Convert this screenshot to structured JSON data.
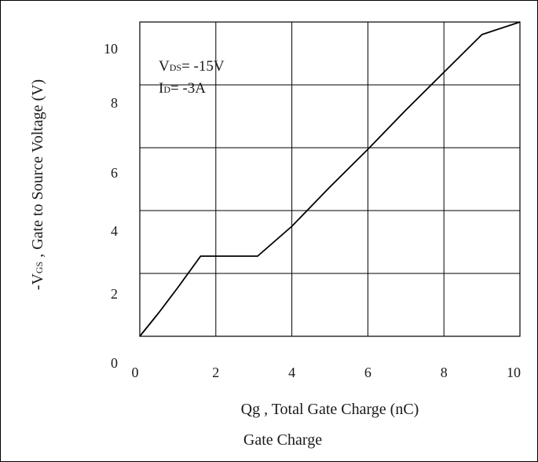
{
  "chart_data": {
    "type": "line",
    "title": "Gate Charge",
    "xlabel": "Qg , Total Gate Charge (nC)",
    "ylabel": {
      "prefix": "-V",
      "sub": "GS",
      "suffix": " , Gate to Source Voltage (V)"
    },
    "xlim": [
      0,
      10
    ],
    "ylim": [
      0,
      10
    ],
    "x_ticks": [
      "0",
      "2",
      "4",
      "6",
      "8",
      "10"
    ],
    "y_ticks": [
      "0",
      "2",
      "4",
      "6",
      "8",
      "10"
    ],
    "grid": true,
    "annotations": [
      {
        "prefix": "V",
        "sub": "DS",
        "suffix": "= -15V"
      },
      {
        "prefix": "I",
        "sub": "D",
        "suffix": "= -3A"
      }
    ],
    "series": [
      {
        "x": [
          0,
          0.5,
          1.0,
          1.6,
          3.1,
          4.0,
          5.0,
          6.0,
          7.0,
          8.0,
          9.0,
          10.0
        ],
        "y": [
          0,
          0.75,
          1.55,
          2.55,
          2.55,
          3.5,
          4.75,
          5.95,
          7.2,
          8.4,
          9.6,
          10.0
        ]
      }
    ],
    "colors": {
      "line": "#000000",
      "grid": "#000000"
    }
  }
}
